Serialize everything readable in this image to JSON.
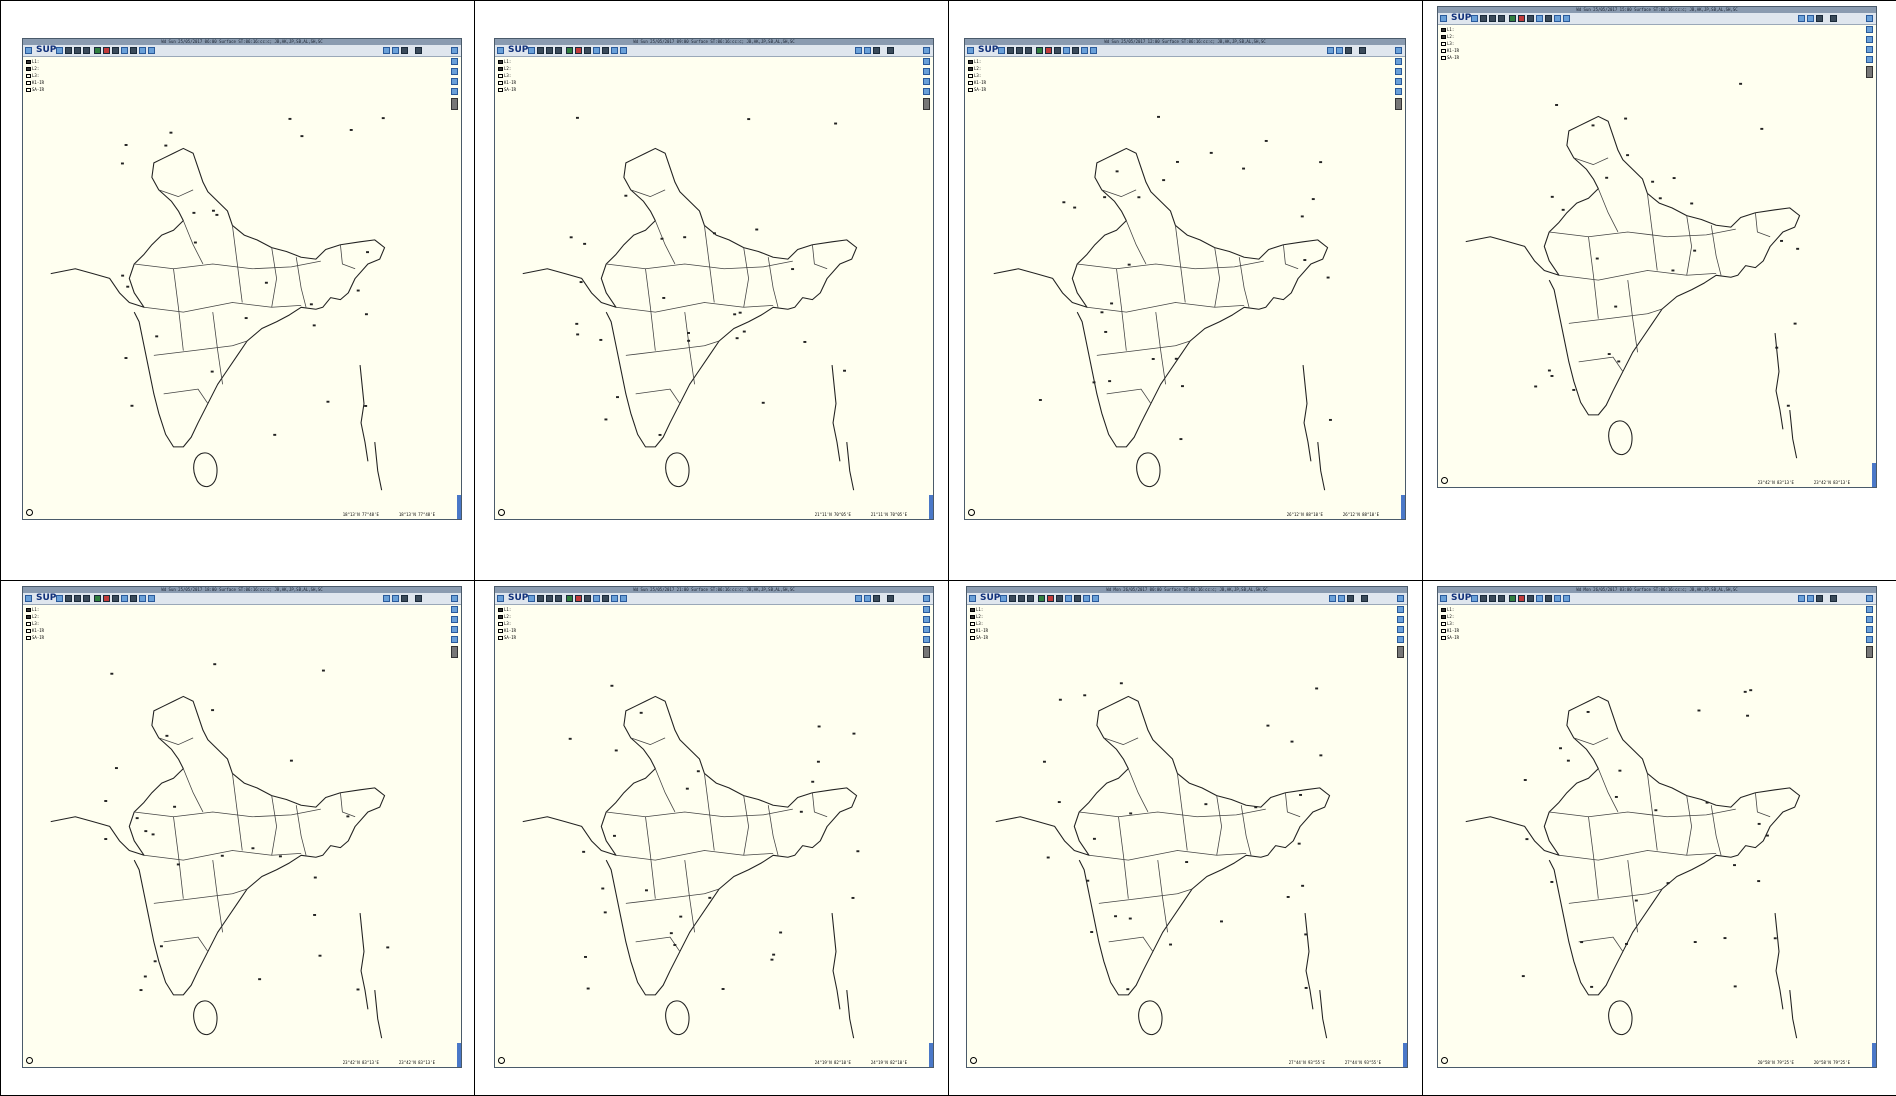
{
  "panels": [
    {
      "title": "Wd Sun 25/05/2017 06:00 Surface ST:06:16:cc:c; JB,AK,JP,SB,AL,SH,SC",
      "logo": "SUP",
      "layers": [
        "L1:",
        "L2:",
        "L3:",
        "K1-IR",
        "SA-IR"
      ],
      "coord1": "18°13'N 77°48'E",
      "coord2": "18°13'N 77°48'E"
    },
    {
      "title": "Wd Sun 25/05/2017 09:00 Surface ST:06:16:cc:c; JB,AK,JP,SB,AL,SH,SC",
      "logo": "SUP",
      "layers": [
        "L1:",
        "L2:",
        "L3:",
        "K1-IR",
        "SA-IR"
      ],
      "coord1": "21°11'N 70°05'E",
      "coord2": "21°11'N 70°05'E"
    },
    {
      "title": "Wd Sun 25/05/2017 12:00 Surface ST:06:16:cc:c; JB,AK,JP,SB,AL,SH,SC",
      "logo": "SUP",
      "layers": [
        "L1:",
        "L2:",
        "L3:",
        "K1-IR",
        "SA-IR"
      ],
      "coord1": "26°12'N 88°10'E",
      "coord2": "26°12'N 88°10'E"
    },
    {
      "title": "Wd Sun 25/05/2017 15:00 Surface ST:06:16:cc:c; JB,AK,JP,SB,AL,SH,SC",
      "logo": "SUP",
      "layers": [
        "L1:",
        "L2:",
        "L3:",
        "K1-IR",
        "SA-IR"
      ],
      "coord1": "23°42'N 83°13'E",
      "coord2": "23°42'N 83°13'E"
    },
    {
      "title": "Wd Sun 25/05/2017 18:00 Surface ST:06:16:cc:c; JB,AK,JP,SB,AL,SH,SC",
      "logo": "SUP",
      "layers": [
        "L1:",
        "L2:",
        "L3:",
        "K1-IR",
        "SA-IR"
      ],
      "coord1": "23°42'N 83°13'E",
      "coord2": "23°42'N 83°13'E"
    },
    {
      "title": "Wd Sun 25/05/2017 21:00 Surface ST:06:16:cc:c; JB,AK,JP,SB,AL,SH,SC",
      "logo": "SUP",
      "layers": [
        "L1:",
        "L2:",
        "L3:",
        "K1-IR",
        "SA-IR"
      ],
      "coord1": "24°19'N 82°10'E",
      "coord2": "24°19'N 82°10'E"
    },
    {
      "title": "Wd Mon 26/05/2017 00:00 Surface ST:06:16:cc:c; JB,AK,JP,SB,AL,SH,SC",
      "logo": "SUP",
      "layers": [
        "L1:",
        "L2:",
        "L3:",
        "K1-IR",
        "SA-IR"
      ],
      "coord1": "27°44'N 93°55'E",
      "coord2": "27°44'N 93°55'E"
    },
    {
      "title": "Wd Mon 26/05/2017 03:00 Surface ST:06:16:cc:c; JB,AK,JP,SB,AL,SH,SC",
      "logo": "SUP",
      "layers": [
        "L1:",
        "L2:",
        "L3:",
        "K1-IR",
        "SA-IR"
      ],
      "coord1": "20°58'N 79°25'E",
      "coord2": "20°58'N 79°25'E"
    }
  ],
  "colors": {
    "map_bg": "#fffff0",
    "border": "#000000",
    "accent": "#4a78c8"
  },
  "icons": [
    "home-icon",
    "logo",
    "satellite-icon",
    "radar-icon",
    "print-icon",
    "chart-icon",
    "layer-icon",
    "zoom-icon",
    "pan-icon",
    "measure-icon",
    "refresh-icon",
    "back-icon",
    "forward-icon",
    "help-icon",
    "close-icon"
  ]
}
